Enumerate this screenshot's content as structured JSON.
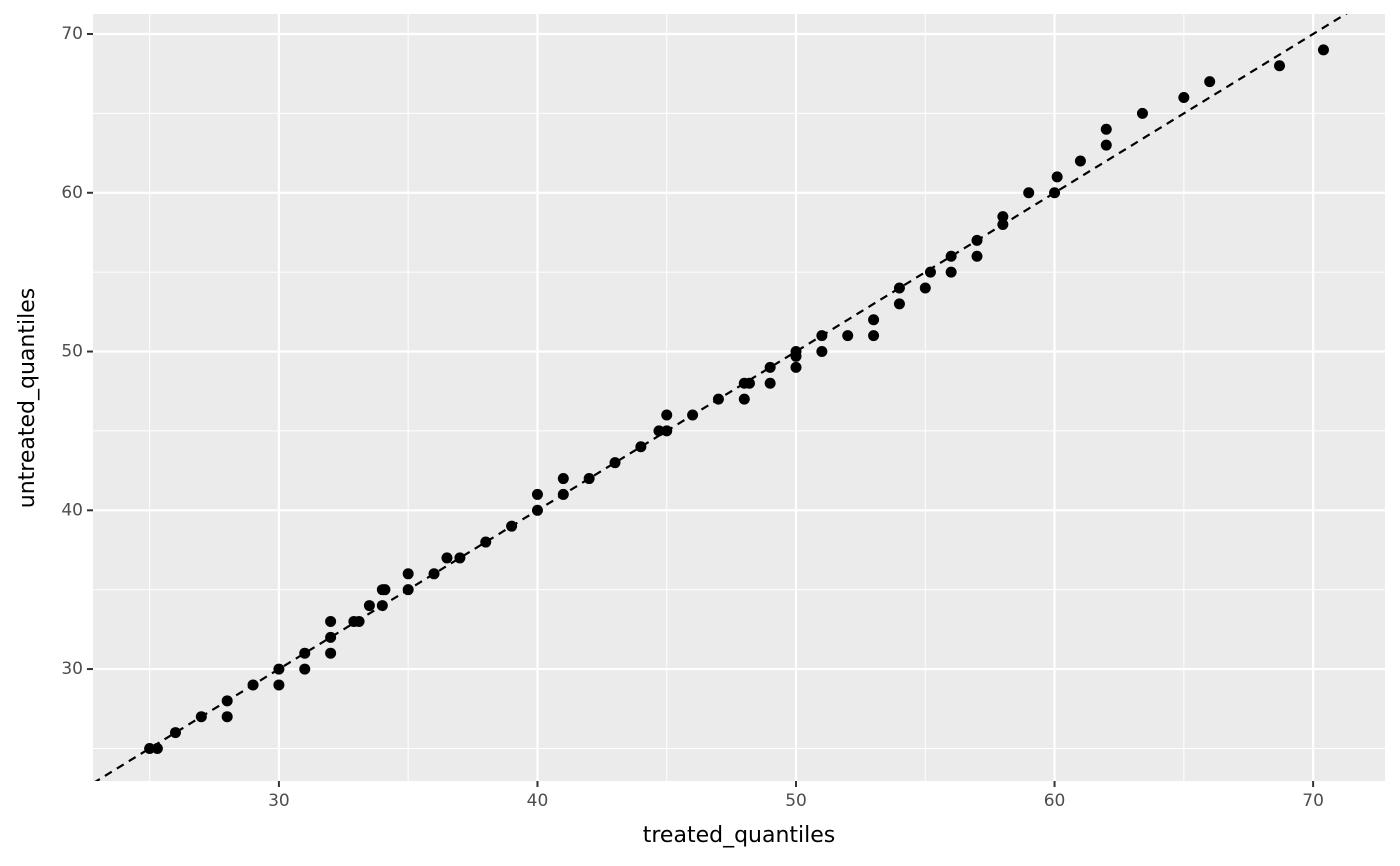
{
  "chart_data": {
    "type": "scatter",
    "x_label": "treated_quantiles",
    "y_label": "untreated_quantiles",
    "x": [
      25,
      25.3,
      26,
      27,
      28,
      28,
      29,
      30,
      30,
      31,
      31,
      32,
      32,
      32,
      32.9,
      33.1,
      33.5,
      34,
      34.1,
      34,
      35,
      35,
      36,
      36.5,
      37,
      38,
      39,
      40,
      40,
      41,
      41,
      42,
      43,
      44,
      44.7,
      45,
      45,
      46,
      47,
      48,
      48,
      48.2,
      49,
      49,
      50,
      50,
      50,
      51,
      51,
      52,
      53,
      53,
      54,
      54,
      55,
      55.2,
      56,
      56,
      57,
      57,
      58,
      58,
      59,
      60,
      60.1,
      61,
      62,
      62,
      63.4,
      65,
      66,
      68.7,
      70.4
    ],
    "y": [
      25,
      25,
      26,
      27,
      28,
      27,
      29,
      30,
      29,
      31,
      30,
      33,
      32,
      31,
      33,
      33,
      34,
      35,
      35,
      34,
      36,
      35,
      36,
      37,
      37,
      38,
      39,
      41,
      40,
      42,
      41,
      42,
      43,
      44,
      45,
      45,
      46,
      46,
      47,
      48,
      47,
      48,
      49,
      48,
      50,
      49.7,
      49,
      51,
      50,
      51,
      52,
      51,
      54,
      53,
      54,
      55,
      56,
      55,
      57,
      56,
      58.5,
      58,
      60,
      60,
      61,
      62,
      64,
      63,
      65,
      66,
      67,
      68,
      69
    ],
    "color": "#000000",
    "reference_line": {
      "intercept": 0,
      "slope": 1,
      "color": "#000000",
      "dashed": true
    },
    "xlim": [
      22.81,
      72.78
    ],
    "ylim": [
      22.95,
      71.26
    ],
    "xticks": [
      30,
      40,
      50,
      60,
      70
    ],
    "yticks": [
      30,
      40,
      50,
      60,
      70
    ],
    "grid": true
  }
}
